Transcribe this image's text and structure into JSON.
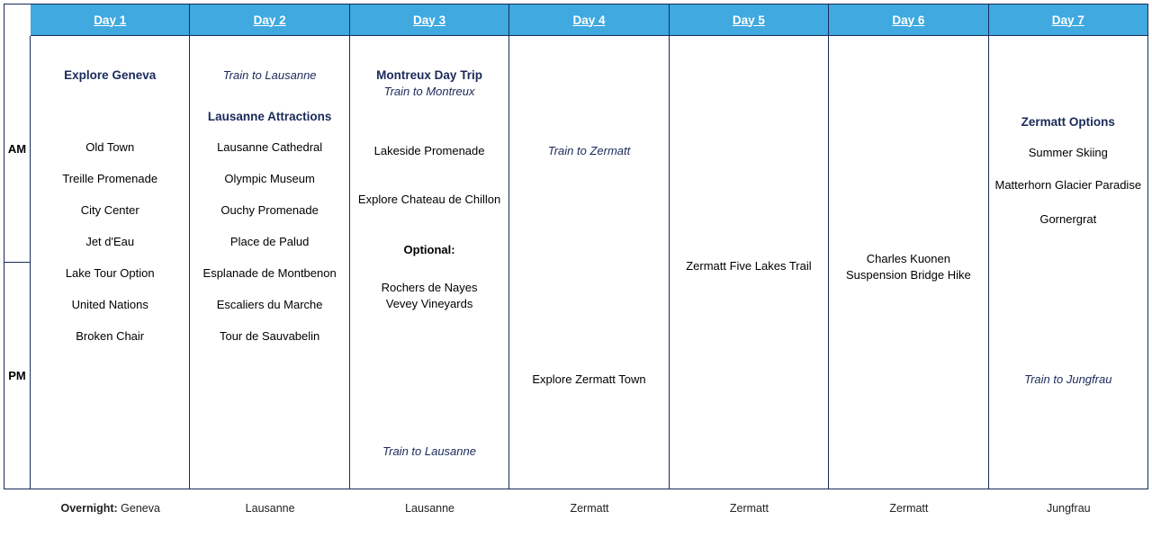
{
  "colors": {
    "header_bg": "#3fa9e0",
    "header_fg": "#ffffff",
    "border": "#1a2a5a",
    "emph_text": "#1a2a5a",
    "body_text": "#000000"
  },
  "row_labels": {
    "am": "AM",
    "pm": "PM"
  },
  "overnight_label": "Overnight:",
  "days": [
    {
      "header": "Day 1",
      "overnight": "Geneva",
      "title": "Explore Geneva",
      "items": [
        "Old Town",
        "Treille Promenade",
        "City Center",
        "Jet d'Eau",
        "Lake Tour Option",
        "United Nations",
        "Broken Chair"
      ]
    },
    {
      "header": "Day 2",
      "overnight": "Lausanne",
      "train_in": "Train to Lausanne",
      "title": "Lausanne Attractions",
      "items": [
        "Lausanne Cathedral",
        "Olympic Museum",
        "Ouchy Promenade",
        "Place de Palud",
        "Esplanade de Montbenon",
        "Escaliers du Marche",
        "Tour de Sauvabelin"
      ]
    },
    {
      "header": "Day 3",
      "overnight": "Lausanne",
      "title": "Montreux Day Trip",
      "subtitle_italic": "Train to Montreux",
      "i1": "Lakeside Promenade",
      "i2": "Explore Chateau de Chillon",
      "optional_label": "Optional:",
      "opt1": "Rochers de Nayes",
      "opt2": "Vevey Vineyards",
      "train_out": "Train to Lausanne"
    },
    {
      "header": "Day 4",
      "overnight": "Zermatt",
      "train_in": "Train to Zermatt",
      "i1": "Explore Zermatt Town"
    },
    {
      "header": "Day 5",
      "overnight": "Zermatt",
      "i1": "Zermatt Five Lakes Trail"
    },
    {
      "header": "Day 6",
      "overnight": "Zermatt",
      "i1": "Charles Kuonen",
      "i2": "Suspension Bridge Hike"
    },
    {
      "header": "Day 7",
      "overnight": "Jungfrau",
      "title": "Zermatt Options",
      "i1": "Summer Skiing",
      "i2": "Matterhorn Glacier Paradise",
      "i3": "Gornergrat",
      "train_out": "Train to Jungfrau"
    }
  ]
}
